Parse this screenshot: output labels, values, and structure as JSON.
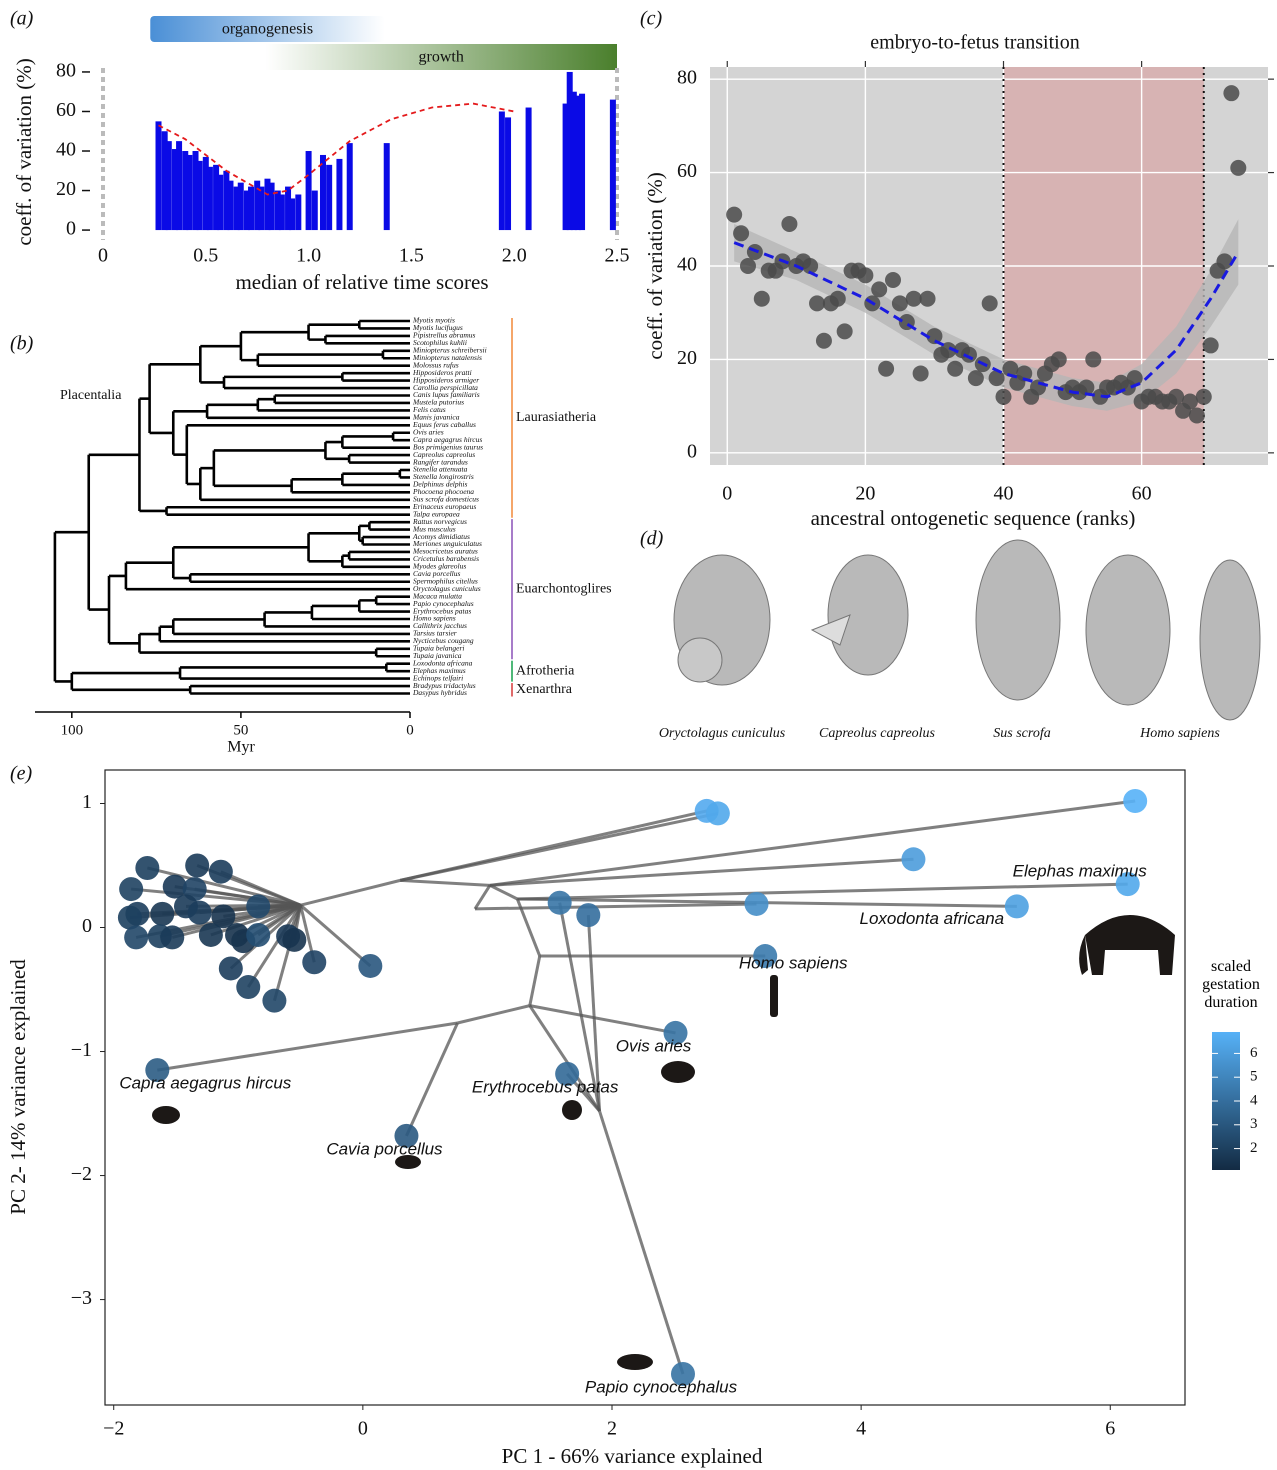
{
  "chart_data": [
    {
      "type": "bar",
      "panel_label": "(a)",
      "xlabel": "median of relative time scores",
      "ylabel": "coeff. of variation (%)",
      "color": "#0a0ae6",
      "x": [
        0.27,
        0.3,
        0.32,
        0.35,
        0.37,
        0.4,
        0.42,
        0.45,
        0.47,
        0.5,
        0.52,
        0.55,
        0.57,
        0.6,
        0.62,
        0.65,
        0.67,
        0.7,
        0.72,
        0.75,
        0.77,
        0.8,
        0.82,
        0.85,
        0.87,
        0.9,
        0.92,
        0.95,
        1.0,
        1.03,
        1.07,
        1.1,
        1.15,
        1.2,
        1.38,
        1.94,
        1.97,
        2.07,
        2.25,
        2.27,
        2.29,
        2.31,
        2.33,
        2.48
      ],
      "values": [
        55,
        50,
        45,
        41,
        45,
        40,
        38,
        40,
        35,
        37,
        32,
        33,
        28,
        30,
        25,
        22,
        24,
        20,
        22,
        25,
        22,
        26,
        24,
        20,
        18,
        22,
        16,
        18,
        40,
        20,
        38,
        33,
        36,
        44,
        44,
        60,
        57,
        62,
        64,
        80,
        70,
        68,
        69,
        66
      ],
      "fit": {
        "color": "#e41a1c",
        "x": [
          0.27,
          0.4,
          0.6,
          0.8,
          0.9,
          1.0,
          1.2,
          1.4,
          1.6,
          1.8,
          2.0
        ],
        "values": [
          53,
          46,
          30,
          18,
          20,
          28,
          45,
          56,
          62,
          64,
          60
        ]
      },
      "stages": [
        {
          "name": "organogenesis",
          "color": "#4a8fd6",
          "range": [
            0.23,
            1.37
          ]
        },
        {
          "name": "growth",
          "color": "#4a7f2c",
          "range": [
            0.79,
            2.5
          ]
        }
      ],
      "xlim": [
        0,
        2.5
      ],
      "ylim": [
        -3,
        82
      ],
      "xticks": [
        0,
        0.5,
        {
          "value": 1,
          "label": "1.0"
        },
        1.5,
        {
          "value": 2,
          "label": "2.0"
        },
        2.5
      ],
      "yticks": [
        0,
        20,
        40,
        60,
        80
      ]
    },
    {
      "type": "tree",
      "panel_label": "(b)",
      "xlabel": "Myr",
      "root_label": "Placentalia",
      "species": [
        "Myotis myotis",
        "Myotis lucifugus",
        "Pipistrellus abramus",
        "Scotophilus kuhlii",
        "Miniopterus schreibersii",
        "Miniopterus natalensis",
        "Molossus rufus",
        "Hipposideros pratti",
        "Hipposideros armiger",
        "Carollia perspicillata",
        "Canis lupus familiaris",
        "Mustela putorius",
        "Felis catus",
        "Manis javanica",
        "Equus ferus caballus",
        "Ovis aries",
        "Capra aegagrus hircus",
        "Bos primigenius taurus",
        "Capreolus capreolus",
        "Rangifer tarandus",
        "Stenella attenuata",
        "Stenella longirostris",
        "Delphinus delphis",
        "Phocoena phocoena",
        "Sus scrofa domesticus",
        "Erinaceus europaeus",
        "Talpa europaea",
        "Rattus norvegicus",
        "Mus musculus",
        "Acomys dimidiatus",
        "Meriones unguiculatus",
        "Mesocricetus auratus",
        "Cricetulus barabensis",
        "Myodes glareolus",
        "Cavia porcellus",
        "Spermophilus citellus",
        "Oryctolagus cuniculus",
        "Macaca mulatta",
        "Papio cynocephalus",
        "Erythrocebus patas",
        "Homo sapiens",
        "Callithrix jacchus",
        "Tarsius tarsier",
        "Nycticebus cougang",
        "Tupaia belangeri",
        "Tupaia javanica",
        "Loxodonta africana",
        "Elephas maximus",
        "Echinops telfairi",
        "Bradypus tridactylus",
        "Dasypus hybridus"
      ],
      "tree": [
        105,
        [
          95,
          [
            80,
            [
              77,
              [
                62,
                [
                  50,
                  [
                    30,
                    [
                      15,
                      0,
                      1
                    ],
                    [
                      25,
                      2,
                      3
                    ]
                  ],
                  [
                    45,
                    [
                      8,
                      4,
                      5
                    ],
                    6
                  ]
                ],
                [
                  55,
                  [
                    20,
                    7,
                    8
                  ],
                  9
                ]
              ],
              [
                70,
                [
                  60,
                  [
                    45,
                    [
                      40,
                      10,
                      11
                    ],
                    12
                  ],
                  13
                ],
                [
                  66,
                  14,
                  [
                    62,
                    [
                      58,
                      [
                        25,
                        [
                          20,
                          [
                            5,
                            15,
                            16
                          ],
                          17
                        ],
                        [
                          18,
                          18,
                          19
                        ]
                      ],
                      [
                        35,
                        [
                          20,
                          [
                            3,
                            20,
                            21
                          ],
                          22
                        ],
                        23
                      ]
                    ],
                    24
                  ]
                ]
              ]
            ],
            [
              72,
              25,
              26
            ]
          ],
          [
            89,
            [
              84,
              [
                70,
                [
                  30,
                  [
                    15,
                    [
                      12,
                      27,
                      28
                    ],
                    [
                      14,
                      29,
                      30
                    ]
                  ],
                  [
                    20,
                    [
                      18,
                      31,
                      32
                    ],
                    33
                  ]
                ],
                [
                  65,
                  34,
                  35
                ]
              ],
              36
            ],
            [
              80,
              [
                74,
                [
                  70,
                  [
                    43,
                    [
                      29,
                      [
                        15,
                        [
                          10,
                          37,
                          38
                        ],
                        39
                      ],
                      40
                    ],
                    41
                  ],
                  42
                ],
                43
              ],
              [
                10,
                44,
                45
              ]
            ]
          ]
        ],
        [
          100,
          [
            68,
            [
              7,
              46,
              47
            ],
            48
          ],
          [
            65,
            49,
            50
          ]
        ]
      ],
      "clades": [
        {
          "name": "Laurasiatheria",
          "color": "#f5a66a",
          "tips": [
            0,
            26
          ]
        },
        {
          "name": "Euarchontoglires",
          "color": "#a77cc9",
          "tips": [
            27,
            45
          ]
        },
        {
          "name": "Afrotheria",
          "color": "#4fb878",
          "tips": [
            46,
            48
          ]
        },
        {
          "name": "Xenarthra",
          "color": "#e06a6a",
          "tips": [
            49,
            50
          ]
        }
      ],
      "xlim": [
        110,
        0
      ],
      "xticks": [
        100,
        50,
        0
      ]
    },
    {
      "type": "scatter",
      "panel_label": "(c)",
      "title": "embryo-to-fetus transition",
      "xlabel": "ancestral ontogenetic sequence (ranks)",
      "ylabel": "coeff. of variation (%)",
      "color": "#4a4a4a",
      "x": [
        1,
        2,
        3,
        4,
        5,
        6,
        7,
        8,
        9,
        10,
        11,
        12,
        13,
        14,
        15,
        16,
        17,
        18,
        19,
        20,
        21,
        22,
        23,
        24,
        25,
        26,
        27,
        28,
        29,
        30,
        31,
        32,
        33,
        34,
        35,
        36,
        37,
        38,
        39,
        40,
        41,
        42,
        43,
        44,
        45,
        46,
        47,
        48,
        49,
        50,
        51,
        52,
        53,
        54,
        55,
        56,
        57,
        58,
        59,
        60,
        61,
        62,
        63,
        64,
        65,
        66,
        67,
        68,
        69,
        70,
        71,
        72,
        73,
        74
      ],
      "values": [
        51,
        47,
        40,
        43,
        33,
        39,
        39,
        41,
        49,
        40,
        41,
        40,
        32,
        24,
        32,
        33,
        26,
        39,
        39,
        38,
        32,
        35,
        18,
        37,
        32,
        28,
        33,
        17,
        33,
        25,
        21,
        22,
        18,
        22,
        21,
        16,
        19,
        32,
        16,
        12,
        18,
        15,
        17,
        12,
        14,
        17,
        19,
        20,
        13,
        14,
        13,
        14,
        20,
        12,
        14,
        14,
        15,
        14,
        16,
        11,
        12,
        12,
        11,
        11,
        12,
        9,
        11,
        8,
        12,
        23,
        39,
        41,
        77,
        61
      ],
      "fit": {
        "color": "#1a1ae0",
        "band_color": "#b5b5b5",
        "x": [
          1,
          10,
          20,
          30,
          40,
          50,
          55,
          60,
          65,
          70,
          74
        ],
        "values": [
          45,
          40,
          33,
          24,
          17,
          13,
          12,
          15,
          22,
          33,
          43
        ],
        "lower": [
          41,
          37,
          30,
          21,
          14,
          10,
          9,
          11,
          17,
          27,
          36
        ],
        "upper": [
          49,
          43,
          36,
          27,
          20,
          16,
          15,
          19,
          27,
          39,
          50
        ]
      },
      "vlines": [
        40,
        69
      ],
      "shade_color": "#d8a8a8",
      "xlim": [
        -2.5,
        78.3
      ],
      "ylim": [
        -2.6,
        82.6
      ],
      "xticks": [
        0,
        20,
        40,
        60
      ],
      "yticks": [
        0,
        20,
        40,
        60,
        80
      ],
      "grid": true
    },
    {
      "type": "scatter",
      "panel_label": "(e)",
      "xlabel": "PC 1 - 66% variance explained",
      "ylabel": "PC 2- 14% variance explained",
      "colorbar": {
        "title": "scaled gestation duration",
        "low": "#132b43",
        "high": "#56b1f7",
        "clim": [
          1.1,
          6.9
        ],
        "ticks": [
          2,
          3,
          4,
          5,
          6
        ]
      },
      "names": [
        "Elephas maximus",
        "Loxodonta africana",
        "Homo sapiens",
        "Ovis aries",
        "Erythrocebus patas",
        "Capra aegagrus hircus",
        "Cavia porcellus",
        "Papio cynocephalus",
        null,
        null,
        null,
        null,
        null,
        null,
        null,
        null,
        null,
        null,
        null,
        null,
        null,
        null,
        null,
        null,
        null,
        null,
        null,
        null,
        null,
        null,
        null,
        null,
        null,
        null,
        null,
        null,
        null,
        null,
        null,
        null,
        null,
        null
      ],
      "x": [
        6.14,
        5.25,
        3.23,
        2.51,
        1.64,
        -1.65,
        0.35,
        2.57,
        6.2,
        2.76,
        2.85,
        4.42,
        3.16,
        1.58,
        1.81,
        0.06,
        -1.73,
        -1.86,
        -1.33,
        -1.14,
        -1.51,
        -1.35,
        -1.81,
        -1.87,
        -1.61,
        -1.42,
        -1.31,
        -1.12,
        -0.84,
        -1.82,
        -1.63,
        -1.53,
        -1.22,
        -1.01,
        -0.96,
        -0.84,
        -0.6,
        -0.55,
        -0.39,
        -1.06,
        -0.92,
        -0.71
      ],
      "y": [
        0.35,
        0.17,
        -0.23,
        -0.85,
        -1.18,
        -1.15,
        -1.68,
        -3.6,
        1.02,
        0.94,
        0.92,
        0.55,
        0.19,
        0.2,
        0.1,
        -0.31,
        0.48,
        0.31,
        0.5,
        0.45,
        0.33,
        0.31,
        0.11,
        0.08,
        0.11,
        0.17,
        0.12,
        0.09,
        0.17,
        -0.08,
        -0.07,
        -0.08,
        -0.06,
        -0.06,
        -0.11,
        -0.06,
        -0.07,
        -0.1,
        -0.28,
        -0.33,
        -0.48,
        -0.59
      ],
      "gestation": [
        6.5,
        6.2,
        4.5,
        4.2,
        3.8,
        3.2,
        3.1,
        4.2,
        6.9,
        6.6,
        6.5,
        6.0,
        5.4,
        4.3,
        4.0,
        3.0,
        2.0,
        2.1,
        1.8,
        1.9,
        1.7,
        2.2,
        1.9,
        2.0,
        1.6,
        1.8,
        1.9,
        1.5,
        2.4,
        2.3,
        2.0,
        1.8,
        1.6,
        1.4,
        1.5,
        2.6,
        1.7,
        1.5,
        2.2,
        1.9,
        2.1,
        2.3
      ],
      "ancestors": {
        "x": [
          0.76,
          1.34,
          1.42,
          1.24,
          1.02,
          1.9,
          0.9,
          0.3,
          -0.5
        ],
        "y": [
          -0.77,
          -0.63,
          -0.23,
          0.23,
          0.34,
          -1.48,
          0.15,
          0.38,
          0.18
        ]
      },
      "edges": [
        [
          42,
          5
        ],
        [
          42,
          6
        ],
        [
          42,
          43
        ],
        [
          43,
          3
        ],
        [
          43,
          44
        ],
        [
          44,
          2
        ],
        [
          44,
          45
        ],
        [
          45,
          0
        ],
        [
          45,
          1
        ],
        [
          45,
          46
        ],
        [
          46,
          8
        ],
        [
          46,
          11
        ],
        [
          46,
          49
        ],
        [
          49,
          9
        ],
        [
          49,
          10
        ],
        [
          49,
          50
        ],
        [
          43,
          47
        ],
        [
          47,
          7
        ],
        [
          47,
          4
        ],
        [
          47,
          13
        ],
        [
          47,
          14
        ],
        [
          46,
          48
        ],
        [
          48,
          12
        ],
        [
          50,
          15
        ],
        [
          50,
          16
        ],
        [
          50,
          17
        ],
        [
          50,
          18
        ],
        [
          50,
          19
        ],
        [
          50,
          20
        ],
        [
          50,
          21
        ],
        [
          50,
          22
        ],
        [
          50,
          23
        ],
        [
          50,
          24
        ],
        [
          50,
          25
        ],
        [
          50,
          26
        ],
        [
          50,
          27
        ],
        [
          50,
          28
        ],
        [
          50,
          29
        ],
        [
          50,
          30
        ],
        [
          50,
          31
        ],
        [
          50,
          32
        ],
        [
          50,
          33
        ],
        [
          50,
          34
        ],
        [
          50,
          35
        ],
        [
          50,
          36
        ],
        [
          50,
          37
        ],
        [
          50,
          38
        ],
        [
          50,
          39
        ],
        [
          50,
          40
        ],
        [
          50,
          41
        ]
      ],
      "xlim": [
        -2.07,
        6.6
      ],
      "ylim": [
        -3.85,
        1.27
      ],
      "xticks": [
        {
          "value": -2,
          "label": "−2"
        },
        0,
        2,
        4,
        6
      ],
      "yticks": [
        1,
        0,
        {
          "value": -1,
          "label": "−1"
        },
        {
          "value": -2,
          "label": "−2"
        },
        {
          "value": -3,
          "label": "−3"
        }
      ]
    }
  ],
  "figure_d": {
    "panel_label": "(d)",
    "captions": [
      "Oryctolagus cuniculus",
      "Capreolus capreolus",
      "Sus scrofa",
      "Homo sapiens"
    ]
  }
}
